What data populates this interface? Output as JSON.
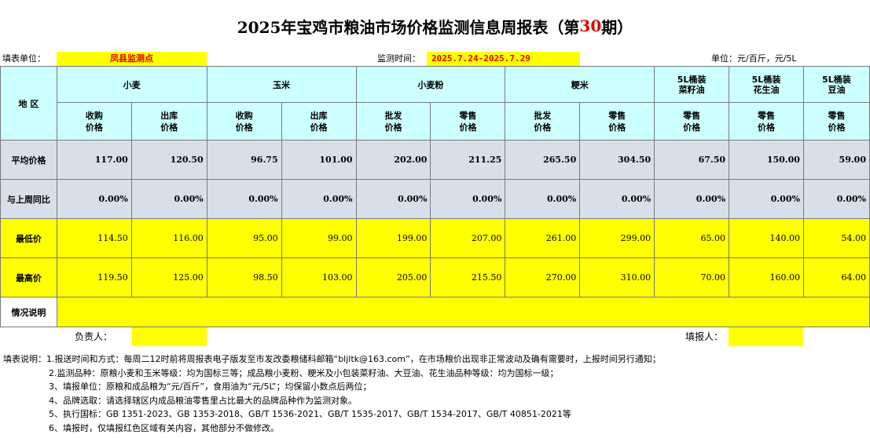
{
  "title": {
    "pre": "2025年宝鸡市粮油市场价格监测信息周报表（第",
    "num": "30",
    "post": "期）"
  },
  "info": {
    "unit_label": "填表单位：",
    "unit_value": "凤县监测点",
    "time_label": "监测时间：",
    "time_value": "2025.7.24-2025.7.29",
    "price_unit": "单位：元/百斤，元/5L"
  },
  "table": {
    "region_label": "地  区",
    "groups": [
      {
        "name": "小麦"
      },
      {
        "name": "玉米"
      },
      {
        "name": "小麦粉"
      },
      {
        "name": "粳米"
      },
      {
        "name_line1": "5L桶装",
        "name_line2": "菜籽油"
      },
      {
        "name_line1": "5L桶装",
        "name_line2": "花生油"
      },
      {
        "name_line1": "5L桶装",
        "name_line2": "豆油"
      }
    ],
    "subheaders": [
      {
        "l1": "收购",
        "l2": "价格"
      },
      {
        "l1": "出库",
        "l2": "价格"
      },
      {
        "l1": "收购",
        "l2": "价格"
      },
      {
        "l1": "出库",
        "l2": "价格"
      },
      {
        "l1": "批发",
        "l2": "价格"
      },
      {
        "l1": "零售",
        "l2": "价格"
      },
      {
        "l1": "批发",
        "l2": "价格"
      },
      {
        "l1": "零售",
        "l2": "价格"
      },
      {
        "l1": "零售",
        "l2": "价格"
      },
      {
        "l1": "零售",
        "l2": "价格"
      },
      {
        "l1": "零售",
        "l2": "价格"
      }
    ],
    "rows": [
      {
        "label": "平均价格",
        "values": [
          "117.00",
          "120.50",
          "96.75",
          "101.00",
          "202.00",
          "211.25",
          "265.50",
          "304.50",
          "67.50",
          "150.00",
          "59.00"
        ]
      },
      {
        "label": "与上周同比",
        "values": [
          "0.00%",
          "0.00%",
          "0.00%",
          "0.00%",
          "0.00%",
          "0.00%",
          "0.00%",
          "0.00%",
          "0.00%",
          "0.00%",
          "0.00%"
        ]
      },
      {
        "label": "最低价",
        "values": [
          "114.50",
          "116.00",
          "95.00",
          "99.00",
          "199.00",
          "207.00",
          "261.00",
          "299.00",
          "65.00",
          "140.00",
          "54.00"
        ]
      },
      {
        "label": "最高价",
        "values": [
          "119.50",
          "125.00",
          "98.50",
          "103.00",
          "205.00",
          "215.50",
          "270.00",
          "310.00",
          "70.00",
          "160.00",
          "64.00"
        ]
      }
    ],
    "remark_label": "情况说明"
  },
  "sign": {
    "responsible_label": "负责人：",
    "filler_label": "填报人："
  },
  "notes": [
    "填表说明：1.报送时间和方式：每周二12时前将周报表电子版发至市发改委粮储科邮箱“bljltk@163.com”，在市场粮价出现非正常波动及确有需要时，上报时间另行通知；",
    "2.监测品种：原粮小麦和玉米等级：均为国标三等；成品粮小麦粉、粳米及小包装菜籽油、大豆油、花生油品种等级：均为国标一级；",
    "3、填报单位：原粮和成品粮为“元/百斤”，食用油为“元/5L”；均保留小数点后两位；",
    "4、品牌选取：请选择辖区内成品粮油零售里占比最大的品牌品种作为监测对象。",
    "5、执行国标：GB 1351-2023、GB 1353-2018、GB/T 1536-2021、GB/T 1535-2017、GB/T 1534-2017、GB/T 40851-2021等",
    "6、填报时，仅填报红色区域有关内容，其他部分不做修改。"
  ]
}
